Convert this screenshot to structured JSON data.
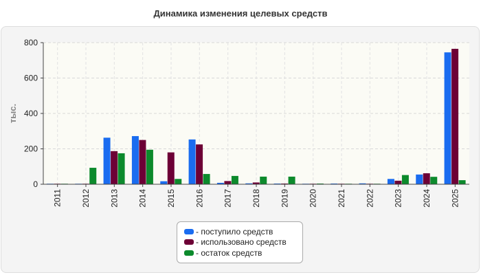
{
  "chart_data": {
    "type": "bar",
    "title": "Динамика изменения целевых средств",
    "ylabel": "тыс.",
    "xlabel": "",
    "ylim": [
      0,
      800
    ],
    "yticks": [
      0,
      200,
      400,
      600,
      800
    ],
    "grid": true,
    "legend_position": "bottom-center",
    "categories": [
      "2011",
      "2012",
      "2013",
      "2014",
      "2015",
      "2016",
      "2017",
      "2018",
      "2019",
      "2020",
      "2021",
      "2022",
      "2023",
      "2024",
      "2025"
    ],
    "series": [
      {
        "name": "- поступило средств",
        "color": "#1a6cf0",
        "values": [
          3,
          3,
          263,
          272,
          17,
          253,
          8,
          5,
          4,
          3,
          4,
          5,
          30,
          55,
          745
        ]
      },
      {
        "name": "- использовано средств",
        "color": "#6d0036",
        "values": [
          3,
          3,
          187,
          250,
          180,
          225,
          18,
          10,
          4,
          3,
          3,
          3,
          20,
          62,
          765
        ]
      },
      {
        "name": "- остаток средств",
        "color": "#0c8a2c",
        "values": [
          3,
          93,
          175,
          195,
          30,
          58,
          47,
          43,
          43,
          4,
          3,
          3,
          52,
          42,
          23
        ]
      }
    ]
  }
}
